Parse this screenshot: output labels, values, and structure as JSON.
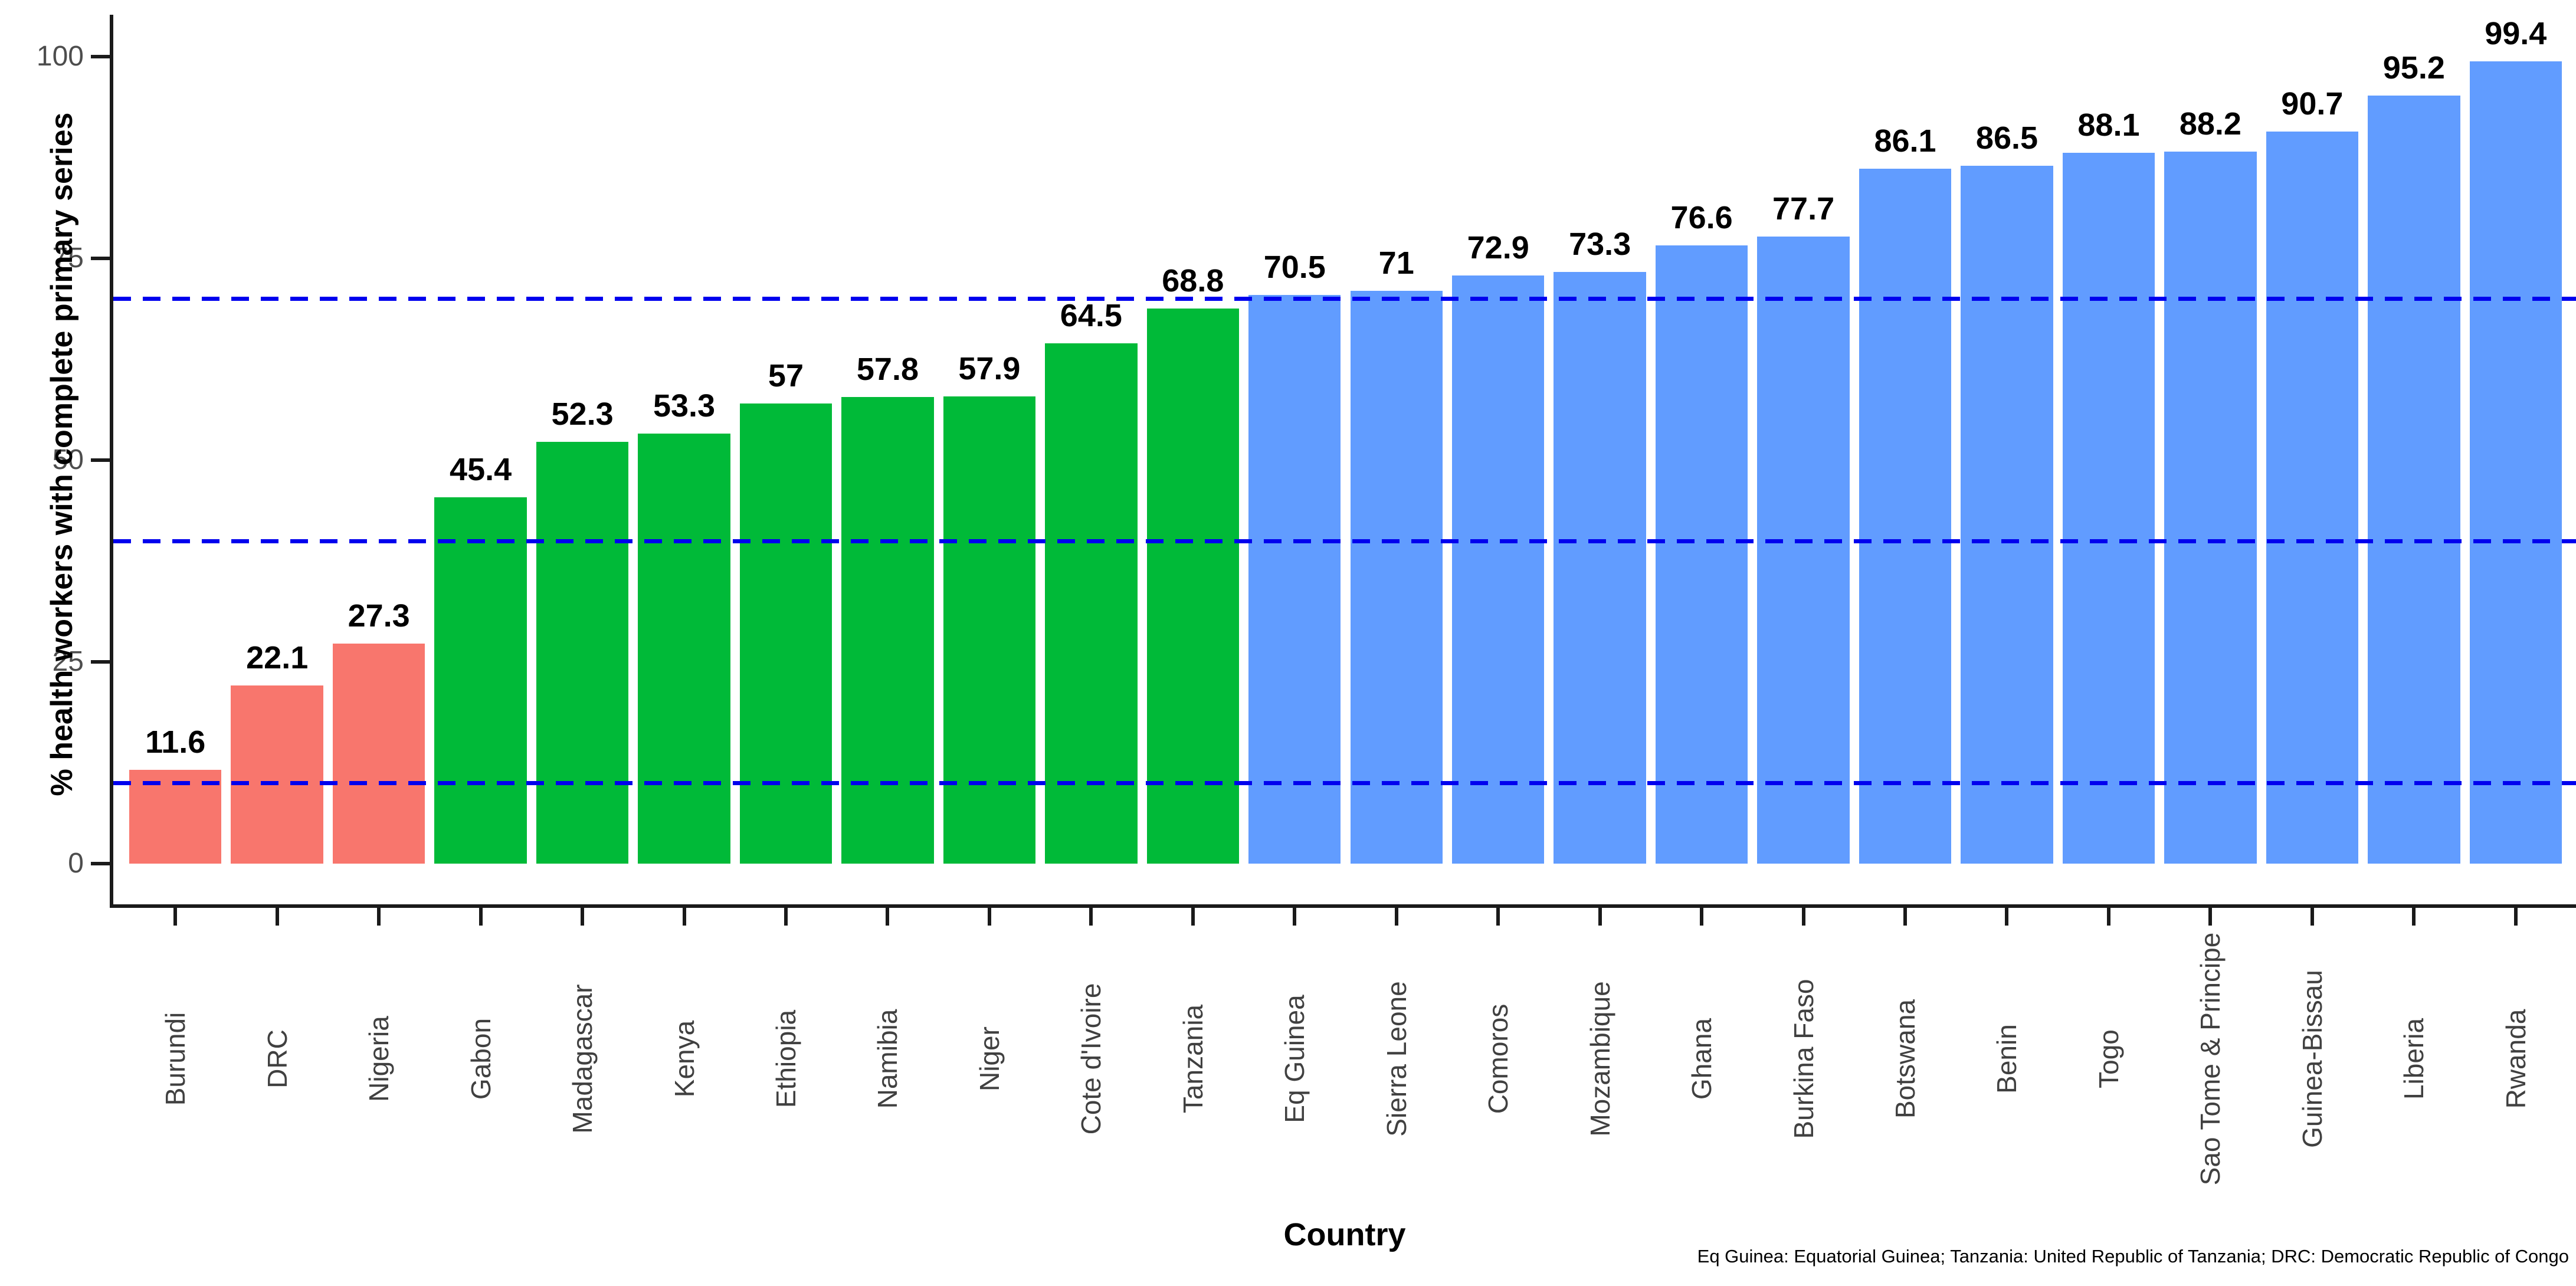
{
  "chart_data": {
    "type": "bar",
    "title": "",
    "xlabel": "Country",
    "ylabel": "% health workers with complete primary series",
    "ylim": [
      0,
      100
    ],
    "yticks": [
      0,
      25,
      50,
      75,
      100
    ],
    "grid": "off",
    "legend": "none",
    "reference_lines": {
      "values": [
        10,
        40,
        70
      ],
      "style": "dashed",
      "color": "#0000EE"
    },
    "categories": [
      "Burundi",
      "DRC",
      "Nigeria",
      "Gabon",
      "Madagascar",
      "Kenya",
      "Ethiopia",
      "Namibia",
      "Niger",
      "Cote d'Ivoire",
      "Tanzania",
      "Eq Guinea",
      "Sierra Leone",
      "Comoros",
      "Mozambique",
      "Ghana",
      "Burkina Faso",
      "Botswana",
      "Benin",
      "Togo",
      "Sao Tome & Principe",
      "Guinea-Bissau",
      "Liberia",
      "Rwanda"
    ],
    "values": [
      11.6,
      22.1,
      27.3,
      45.4,
      52.3,
      53.3,
      57,
      57.8,
      57.9,
      64.5,
      68.8,
      70.5,
      71,
      72.9,
      73.3,
      76.6,
      77.7,
      86.1,
      86.5,
      88.1,
      88.2,
      90.7,
      95.2,
      99.4
    ],
    "value_labels": [
      "11.6",
      "22.1",
      "27.3",
      "45.4",
      "52.3",
      "53.3",
      "57",
      "57.8",
      "57.9",
      "64.5",
      "68.8",
      "70.5",
      "71",
      "72.9",
      "73.3",
      "76.6",
      "77.7",
      "86.1",
      "86.5",
      "88.1",
      "88.2",
      "90.7",
      "95.2",
      "99.4"
    ],
    "bar_colors": [
      "#F8766D",
      "#F8766D",
      "#F8766D",
      "#00BA38",
      "#00BA38",
      "#00BA38",
      "#00BA38",
      "#00BA38",
      "#00BA38",
      "#00BA38",
      "#00BA38",
      "#619CFF",
      "#619CFF",
      "#619CFF",
      "#619CFF",
      "#619CFF",
      "#619CFF",
      "#619CFF",
      "#619CFF",
      "#619CFF",
      "#619CFF",
      "#619CFF",
      "#619CFF",
      "#619CFF"
    ],
    "footnote": "Eq Guinea: Equatorial Guinea; Tanzania: United Republic of Tanzania; DRC: Democratic Republic of Congo"
  },
  "palette": {
    "low_group": "#F8766D",
    "mid_group": "#00BA38",
    "high_group": "#619CFF",
    "reference_line": "#0000EE",
    "axis": "#1a1a1a",
    "tick_text": "#4d4d4d"
  }
}
